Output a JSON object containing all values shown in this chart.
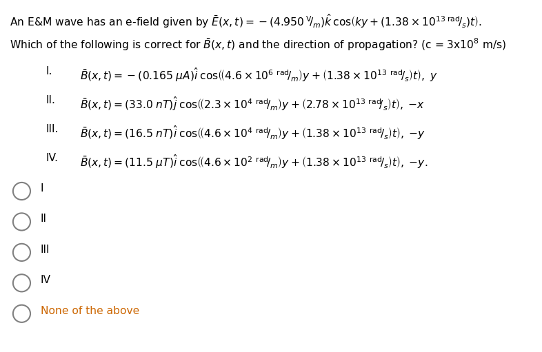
{
  "bg_color": "#ffffff",
  "text_color": "#000000",
  "orange_color": "#cc6600",
  "figsize": [
    7.86,
    5.11
  ],
  "dpi": 100,
  "title_line1_plain": "An E&M wave has an e-field given by ",
  "title_line1_math": "$\\bar{E}(x,t) = -(4.950\\,^{\\mathrm{V}}\\!/_{\\mathrm{m}})\\hat{k}\\,\\cos\\!\\left(ky + (1.38 \\times 10^{13}\\,^{\\mathrm{rad}}\\!/_{\\mathrm{s}})t\\right).$",
  "title_line2": "Which of the following is correct for $\\bar{B}(x,t)$ and the direction of propagation? (c = 3x10$^{8}$ m/s)",
  "roman_labels": [
    "I.",
    "II.",
    "III.",
    "IV."
  ],
  "choice_labels": [
    "I",
    "II",
    "III",
    "IV",
    "None of the above"
  ]
}
